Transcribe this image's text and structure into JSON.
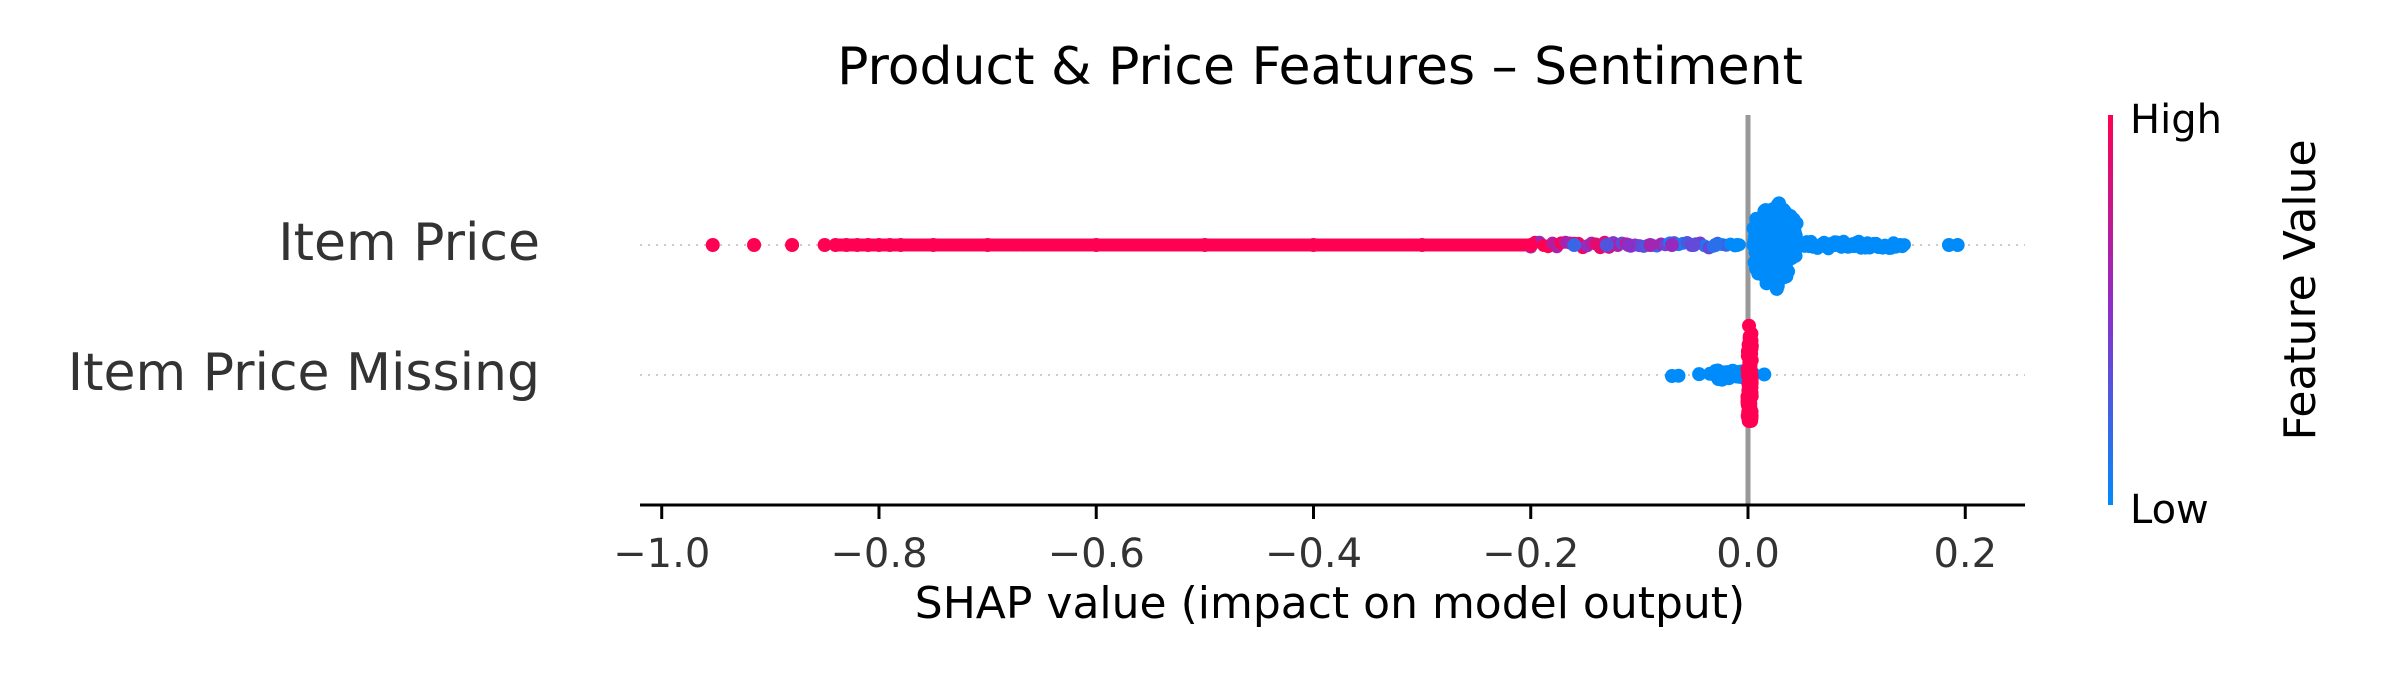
{
  "chart_data": {
    "type": "scatter",
    "subtype": "shap-beeswarm",
    "title": "Product & Price Features – Sentiment",
    "xlabel": "SHAP value (impact on model output)",
    "xlim": [
      -1.02,
      0.255
    ],
    "x_ticks": [
      -1.0,
      -0.8,
      -0.6,
      -0.4,
      -0.2,
      0.0,
      0.2
    ],
    "x_tick_labels": [
      "−1.0",
      "−0.8",
      "−0.6",
      "−0.4",
      "−0.2",
      "0.0",
      "0.2"
    ],
    "features": [
      "Item Price",
      "Item Price Missing"
    ],
    "zero_line": true,
    "grid": false,
    "colorbar": {
      "label": "Feature Value",
      "high_label": "High",
      "low_label": "Low",
      "high_color": "#ff0052",
      "low_color": "#008bfb"
    },
    "series": [
      {
        "feature": "Item Price",
        "points": [
          {
            "x": -0.953,
            "value": 1.0
          },
          {
            "x": -0.915,
            "value": 1.0
          },
          {
            "x": -0.88,
            "value": 1.0
          },
          {
            "x": -0.85,
            "value": 1.0
          },
          {
            "x": -0.84,
            "value": 1.0
          },
          {
            "x": -0.83,
            "value": 1.0
          },
          {
            "x": -0.82,
            "value": 1.0
          },
          {
            "x": -0.81,
            "value": 1.0
          },
          {
            "x": -0.8,
            "value": 1.0
          },
          {
            "x": -0.79,
            "value": 1.0
          },
          {
            "x": -0.78,
            "value": 1.0
          },
          {
            "x": -0.75,
            "value": 1.0
          },
          {
            "x": -0.7,
            "value": 1.0
          },
          {
            "x": -0.6,
            "value": 1.0
          },
          {
            "x": -0.5,
            "value": 1.0
          },
          {
            "x": -0.4,
            "value": 1.0
          },
          {
            "x": -0.3,
            "value": 1.0
          },
          {
            "x": -0.2,
            "value": 1.0
          },
          {
            "x": -0.16,
            "value": 0.2
          },
          {
            "x": -0.13,
            "value": 0.3
          },
          {
            "x": -0.11,
            "value": 0.5
          },
          {
            "x": -0.09,
            "value": 0.6
          },
          {
            "x": -0.07,
            "value": 0.55
          },
          {
            "x": -0.05,
            "value": 0.35
          },
          {
            "x": -0.03,
            "value": 0.15
          },
          {
            "x": -0.01,
            "value": 0.0
          },
          {
            "x": 0.005,
            "value": 0.0
          },
          {
            "x": 0.02,
            "value": 0.0
          },
          {
            "x": 0.03,
            "value": 0.0
          },
          {
            "x": 0.05,
            "value": 0.0
          },
          {
            "x": 0.08,
            "value": 0.0
          },
          {
            "x": 0.11,
            "value": 0.0
          },
          {
            "x": 0.14,
            "value": 0.0
          },
          {
            "x": 0.185,
            "value": 0.0
          },
          {
            "x": 0.193,
            "value": 0.0
          }
        ]
      },
      {
        "feature": "Item Price Missing",
        "points": [
          {
            "x": -0.07,
            "value": 0.0
          },
          {
            "x": -0.064,
            "value": 0.0
          },
          {
            "x": -0.045,
            "value": 0.0
          },
          {
            "x": -0.035,
            "value": 0.0
          },
          {
            "x": -0.025,
            "value": 0.0
          },
          {
            "x": -0.015,
            "value": 0.0
          },
          {
            "x": -0.008,
            "value": 0.0
          },
          {
            "x": 0.005,
            "value": 0.0
          },
          {
            "x": 0.015,
            "value": 0.0
          },
          {
            "x": 0.002,
            "value": 1.0
          }
        ]
      }
    ]
  }
}
